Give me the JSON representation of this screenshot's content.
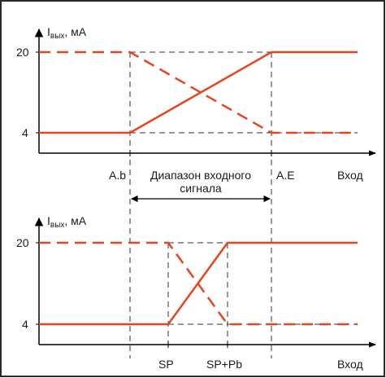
{
  "colors": {
    "signal": "#e8441f",
    "axis": "#000000",
    "guide": "#333333",
    "border": "#2a2a2a"
  },
  "top": {
    "y_axis_label": {
      "symbol": "I",
      "subscript": "вых",
      "unit": ", мА"
    },
    "levels": [
      "20",
      "4"
    ],
    "x_labels": {
      "start": "A.b",
      "end": "A.E",
      "axis": "Вход"
    },
    "range_label_line1": "Диапазон входного",
    "range_label_line2": "сигнала"
  },
  "bottom": {
    "y_axis_label": {
      "symbol": "I",
      "subscript": "вых",
      "unit": ", мА"
    },
    "levels": [
      "20",
      "4"
    ],
    "x_labels": {
      "start": "SP",
      "end": "SP+Pb",
      "axis": "Вход"
    }
  }
}
